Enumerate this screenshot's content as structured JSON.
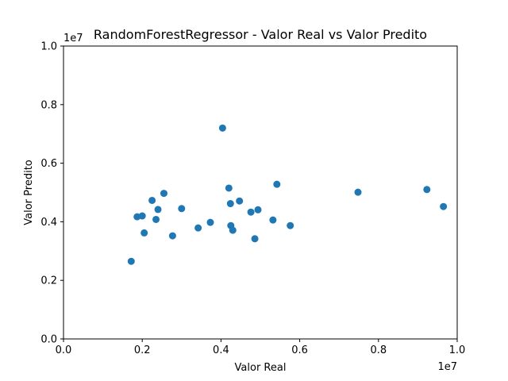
{
  "chart_data": {
    "type": "scatter",
    "title": "RandomForestRegressor - Valor Real vs Valor Predito",
    "xlabel": "Valor Real",
    "ylabel": "Valor Predito",
    "x_offset_text": "1e7",
    "y_offset_text": "1e7",
    "xlim": [
      0,
      10000000
    ],
    "ylim": [
      0,
      10000000
    ],
    "xticks": [
      0,
      2000000,
      4000000,
      6000000,
      8000000,
      10000000
    ],
    "xtick_labels": [
      "0.0",
      "0.2",
      "0.4",
      "0.6",
      "0.8",
      "1.0"
    ],
    "yticks": [
      0,
      2000000,
      4000000,
      6000000,
      8000000,
      10000000
    ],
    "ytick_labels": [
      "0.0",
      "0.2",
      "0.4",
      "0.6",
      "0.8",
      "1.0"
    ],
    "grid": false,
    "marker_color": "#1f77b4",
    "points": [
      {
        "x": 1720000,
        "y": 2650000
      },
      {
        "x": 1870000,
        "y": 4170000
      },
      {
        "x": 2000000,
        "y": 4200000
      },
      {
        "x": 2050000,
        "y": 3620000
      },
      {
        "x": 2250000,
        "y": 4730000
      },
      {
        "x": 2350000,
        "y": 4080000
      },
      {
        "x": 2400000,
        "y": 4420000
      },
      {
        "x": 2550000,
        "y": 4970000
      },
      {
        "x": 2770000,
        "y": 3520000
      },
      {
        "x": 3000000,
        "y": 4450000
      },
      {
        "x": 3420000,
        "y": 3790000
      },
      {
        "x": 3730000,
        "y": 3980000
      },
      {
        "x": 4040000,
        "y": 7200000
      },
      {
        "x": 4200000,
        "y": 5150000
      },
      {
        "x": 4240000,
        "y": 4620000
      },
      {
        "x": 4250000,
        "y": 3870000
      },
      {
        "x": 4300000,
        "y": 3710000
      },
      {
        "x": 4470000,
        "y": 4710000
      },
      {
        "x": 4760000,
        "y": 4330000
      },
      {
        "x": 4860000,
        "y": 3420000
      },
      {
        "x": 4940000,
        "y": 4410000
      },
      {
        "x": 5320000,
        "y": 4060000
      },
      {
        "x": 5420000,
        "y": 5280000
      },
      {
        "x": 5760000,
        "y": 3870000
      },
      {
        "x": 7480000,
        "y": 5010000
      },
      {
        "x": 9230000,
        "y": 5100000
      },
      {
        "x": 9650000,
        "y": 4520000
      }
    ]
  }
}
